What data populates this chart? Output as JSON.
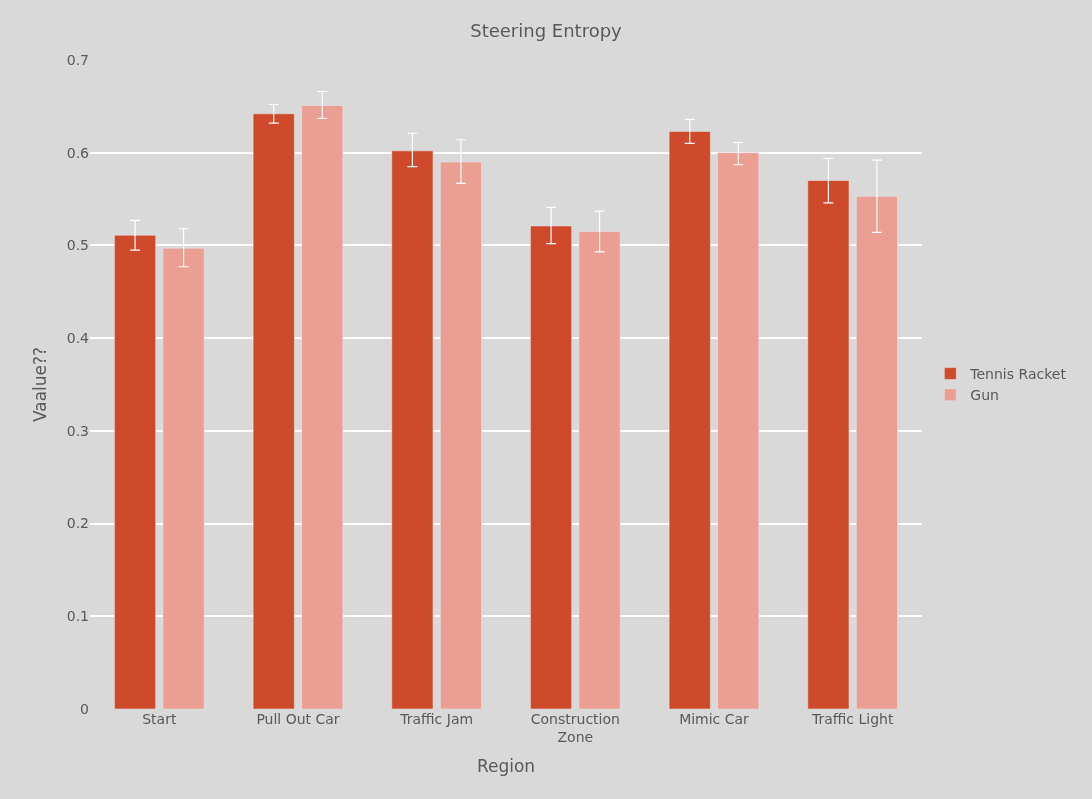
{
  "chart_data": {
    "type": "bar",
    "title": "Steering Entropy",
    "xlabel": "Region",
    "ylabel": "Vaalue??",
    "categories": [
      "Start",
      "Pull Out Car",
      "Traffic Jam",
      "Construction Zone",
      "Mimic Car",
      "Traffic Light"
    ],
    "series": [
      {
        "name": "Tennis Racket",
        "color": "#cf4a2a",
        "values": [
          0.511,
          0.642,
          0.602,
          0.521,
          0.623,
          0.57
        ],
        "errors": [
          [
            0.495,
            0.527
          ],
          [
            0.632,
            0.652
          ],
          [
            0.585,
            0.621
          ],
          [
            0.502,
            0.541
          ],
          [
            0.61,
            0.636
          ],
          [
            0.546,
            0.594
          ]
        ]
      },
      {
        "name": "Gun",
        "color": "#eb9e92",
        "values": [
          0.497,
          0.651,
          0.59,
          0.515,
          0.6,
          0.553
        ],
        "errors": [
          [
            0.477,
            0.518
          ],
          [
            0.637,
            0.666
          ],
          [
            0.567,
            0.614
          ],
          [
            0.493,
            0.537
          ],
          [
            0.587,
            0.611
          ],
          [
            0.514,
            0.592
          ]
        ]
      }
    ],
    "ylim": [
      0,
      0.7
    ],
    "yticks": [
      0,
      0.1,
      0.2,
      0.3,
      0.4,
      0.5,
      0.6,
      0.7
    ],
    "grid": "y",
    "legend": "right"
  }
}
